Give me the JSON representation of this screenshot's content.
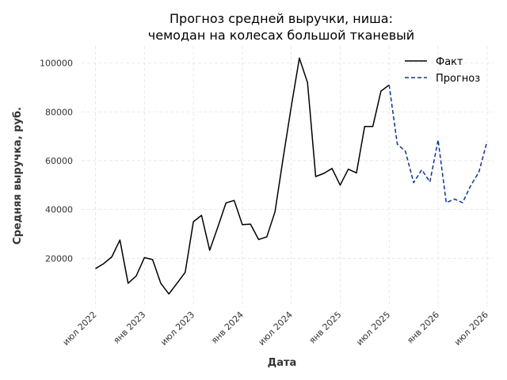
{
  "chart_data": {
    "type": "line",
    "title_line1": "Прогноз средней выручки, ниша:",
    "title_line2": "чемодан на колесах большой тканевый",
    "xlabel": "Дата",
    "ylabel": "Средняя выручка, руб.",
    "ylim": [
      0,
      107000
    ],
    "xlim": [
      "2022-05",
      "2026-08"
    ],
    "grid": true,
    "legend_position": "top-right",
    "x_ticks": [
      {
        "date": "2022-07",
        "label": "июл 2022"
      },
      {
        "date": "2023-01",
        "label": "янв 2023"
      },
      {
        "date": "2023-07",
        "label": "июл 2023"
      },
      {
        "date": "2024-01",
        "label": "янв 2024"
      },
      {
        "date": "2024-07",
        "label": "июл 2024"
      },
      {
        "date": "2025-01",
        "label": "янв 2025"
      },
      {
        "date": "2025-07",
        "label": "июл 2025"
      },
      {
        "date": "2026-01",
        "label": "янв 2026"
      },
      {
        "date": "2026-07",
        "label": "июл 2026"
      }
    ],
    "y_ticks": [
      {
        "value": 20000,
        "label": "20000"
      },
      {
        "value": 40000,
        "label": "40000"
      },
      {
        "value": 60000,
        "label": "60000"
      },
      {
        "value": 80000,
        "label": "80000"
      },
      {
        "value": 100000,
        "label": "100000"
      }
    ],
    "series": [
      {
        "name": "Факт",
        "color": "#000000",
        "dash": "solid",
        "points": [
          {
            "x": "2022-07",
            "y": 15800
          },
          {
            "x": "2022-08",
            "y": 17800
          },
          {
            "x": "2022-09",
            "y": 20600
          },
          {
            "x": "2022-10",
            "y": 27500
          },
          {
            "x": "2022-11",
            "y": 9800
          },
          {
            "x": "2022-12",
            "y": 12800
          },
          {
            "x": "2023-01",
            "y": 20300
          },
          {
            "x": "2023-02",
            "y": 19500
          },
          {
            "x": "2023-03",
            "y": 9800
          },
          {
            "x": "2023-04",
            "y": 5400
          },
          {
            "x": "2023-05",
            "y": 9800
          },
          {
            "x": "2023-06",
            "y": 14300
          },
          {
            "x": "2023-07",
            "y": 35000
          },
          {
            "x": "2023-08",
            "y": 37600
          },
          {
            "x": "2023-09",
            "y": 23300
          },
          {
            "x": "2023-10",
            "y": 32800
          },
          {
            "x": "2023-11",
            "y": 42700
          },
          {
            "x": "2023-12",
            "y": 43700
          },
          {
            "x": "2024-01",
            "y": 33800
          },
          {
            "x": "2024-02",
            "y": 34000
          },
          {
            "x": "2024-03",
            "y": 27700
          },
          {
            "x": "2024-04",
            "y": 28800
          },
          {
            "x": "2024-05",
            "y": 39000
          },
          {
            "x": "2024-06",
            "y": 61000
          },
          {
            "x": "2024-07",
            "y": 82000
          },
          {
            "x": "2024-08",
            "y": 102000
          },
          {
            "x": "2024-09",
            "y": 92000
          },
          {
            "x": "2024-10",
            "y": 53500
          },
          {
            "x": "2024-11",
            "y": 54800
          },
          {
            "x": "2024-12",
            "y": 56800
          },
          {
            "x": "2025-01",
            "y": 50000
          },
          {
            "x": "2025-02",
            "y": 56500
          },
          {
            "x": "2025-03",
            "y": 55000
          },
          {
            "x": "2025-04",
            "y": 74000
          },
          {
            "x": "2025-05",
            "y": 74000
          },
          {
            "x": "2025-06",
            "y": 88500
          },
          {
            "x": "2025-07",
            "y": 91000
          }
        ]
      },
      {
        "name": "Прогноз",
        "color": "#0033cc",
        "dash": "dashed",
        "points": [
          {
            "x": "2025-07",
            "y": 91000
          },
          {
            "x": "2025-08",
            "y": 66800
          },
          {
            "x": "2025-09",
            "y": 63800
          },
          {
            "x": "2025-10",
            "y": 51000
          },
          {
            "x": "2025-11",
            "y": 56300
          },
          {
            "x": "2025-12",
            "y": 51300
          },
          {
            "x": "2026-01",
            "y": 68500
          },
          {
            "x": "2026-02",
            "y": 42800
          },
          {
            "x": "2026-03",
            "y": 44300
          },
          {
            "x": "2026-04",
            "y": 42800
          },
          {
            "x": "2026-05",
            "y": 49800
          },
          {
            "x": "2026-06",
            "y": 55300
          },
          {
            "x": "2026-07",
            "y": 67800
          }
        ]
      }
    ]
  }
}
